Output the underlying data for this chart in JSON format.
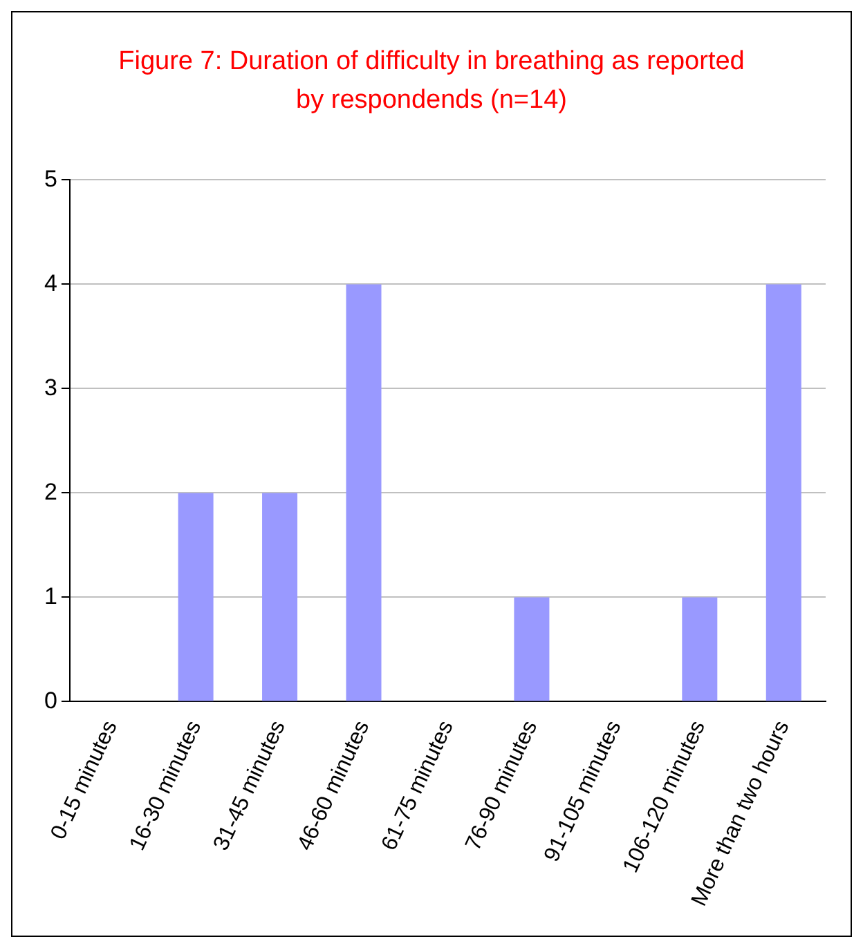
{
  "chart_data": {
    "type": "bar",
    "title": "Figure 7: Duration of difficulty in breathing as reported by respondends (n=14)",
    "categories": [
      "0-15 minutes",
      "16-30 minutes",
      "31-45 minutes",
      "46-60 minutes",
      "61-75 minutes",
      "76-90 minutes",
      "91-105 minutes",
      "106-120 minutes",
      "More than two hours"
    ],
    "values": [
      0,
      2,
      2,
      4,
      0,
      1,
      0,
      1,
      4
    ],
    "color": "#9999ff",
    "ylim": [
      0,
      5
    ],
    "yticks": [
      0,
      1,
      2,
      3,
      4,
      5
    ],
    "grid": "y",
    "legend": false
  }
}
